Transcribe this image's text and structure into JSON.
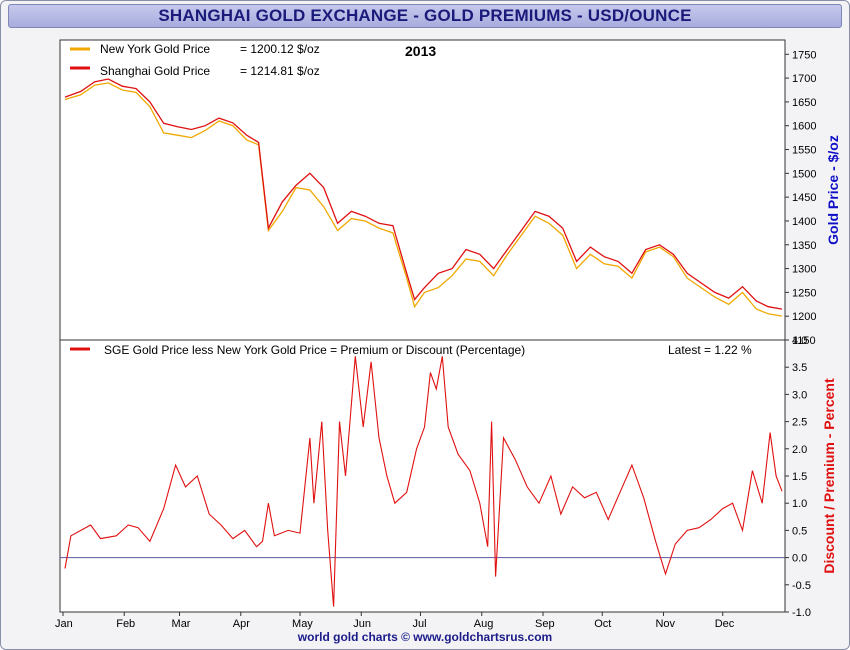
{
  "page": {
    "title": "SHANGHAI GOLD EXCHANGE - GOLD PREMIUMS - USD/OUNCE",
    "footer": "world gold charts © www.goldchartsrus.com"
  },
  "colors": {
    "new_york": "#f0a800",
    "shanghai": "#e01010",
    "premium": "#e01010",
    "right_label_top": "#1010c8",
    "right_label_bottom": "#e01010"
  },
  "chart_data": [
    {
      "type": "line",
      "year": "2013",
      "ylabel": "Gold Price - $/oz",
      "ylim": [
        1150,
        1780
      ],
      "yticks": [
        1150,
        1200,
        1250,
        1300,
        1350,
        1400,
        1450,
        1500,
        1550,
        1600,
        1650,
        1700,
        1750
      ],
      "x_months": [
        "Jan",
        "Feb",
        "Mar",
        "Apr",
        "May",
        "Jun",
        "Jul",
        "Aug",
        "Sep",
        "Oct",
        "Nov",
        "Dec"
      ],
      "legend_position": "top-left",
      "grid": false,
      "series": [
        {
          "name": "New York Gold Price",
          "legend_value": "= 1200.12 $/oz",
          "points": [
            [
              "2013-01-02",
              1655
            ],
            [
              "2013-01-10",
              1665
            ],
            [
              "2013-01-17",
              1685
            ],
            [
              "2013-01-24",
              1690
            ],
            [
              "2013-01-31",
              1675
            ],
            [
              "2013-02-07",
              1670
            ],
            [
              "2013-02-14",
              1640
            ],
            [
              "2013-02-21",
              1585
            ],
            [
              "2013-02-28",
              1580
            ],
            [
              "2013-03-07",
              1575
            ],
            [
              "2013-03-14",
              1590
            ],
            [
              "2013-03-21",
              1610
            ],
            [
              "2013-03-28",
              1600
            ],
            [
              "2013-04-04",
              1570
            ],
            [
              "2013-04-10",
              1560
            ],
            [
              "2013-04-15",
              1380
            ],
            [
              "2013-04-22",
              1420
            ],
            [
              "2013-04-29",
              1470
            ],
            [
              "2013-05-06",
              1465
            ],
            [
              "2013-05-13",
              1430
            ],
            [
              "2013-05-20",
              1380
            ],
            [
              "2013-05-27",
              1405
            ],
            [
              "2013-06-03",
              1400
            ],
            [
              "2013-06-10",
              1385
            ],
            [
              "2013-06-17",
              1375
            ],
            [
              "2013-06-24",
              1280
            ],
            [
              "2013-06-28",
              1220
            ],
            [
              "2013-07-03",
              1250
            ],
            [
              "2013-07-10",
              1260
            ],
            [
              "2013-07-17",
              1285
            ],
            [
              "2013-07-24",
              1320
            ],
            [
              "2013-07-31",
              1315
            ],
            [
              "2013-08-07",
              1285
            ],
            [
              "2013-08-14",
              1330
            ],
            [
              "2013-08-21",
              1370
            ],
            [
              "2013-08-28",
              1410
            ],
            [
              "2013-09-04",
              1395
            ],
            [
              "2013-09-11",
              1370
            ],
            [
              "2013-09-18",
              1300
            ],
            [
              "2013-09-25",
              1330
            ],
            [
              "2013-10-02",
              1310
            ],
            [
              "2013-10-09",
              1305
            ],
            [
              "2013-10-16",
              1280
            ],
            [
              "2013-10-23",
              1335
            ],
            [
              "2013-10-30",
              1345
            ],
            [
              "2013-11-06",
              1325
            ],
            [
              "2013-11-13",
              1280
            ],
            [
              "2013-11-20",
              1260
            ],
            [
              "2013-11-27",
              1240
            ],
            [
              "2013-12-04",
              1225
            ],
            [
              "2013-12-11",
              1250
            ],
            [
              "2013-12-18",
              1215
            ],
            [
              "2013-12-24",
              1205
            ],
            [
              "2013-12-31",
              1200.12
            ]
          ]
        },
        {
          "name": "Shanghai Gold Price",
          "legend_value": "= 1214.81 $/oz",
          "points": [
            [
              "2013-01-02",
              1660
            ],
            [
              "2013-01-10",
              1672
            ],
            [
              "2013-01-17",
              1692
            ],
            [
              "2013-01-24",
              1698
            ],
            [
              "2013-01-31",
              1683
            ],
            [
              "2013-02-07",
              1678
            ],
            [
              "2013-02-14",
              1650
            ],
            [
              "2013-02-21",
              1605
            ],
            [
              "2013-02-28",
              1598
            ],
            [
              "2013-03-07",
              1592
            ],
            [
              "2013-03-14",
              1600
            ],
            [
              "2013-03-21",
              1616
            ],
            [
              "2013-03-28",
              1606
            ],
            [
              "2013-04-04",
              1580
            ],
            [
              "2013-04-10",
              1565
            ],
            [
              "2013-04-15",
              1385
            ],
            [
              "2013-04-22",
              1440
            ],
            [
              "2013-04-29",
              1475
            ],
            [
              "2013-05-06",
              1500
            ],
            [
              "2013-05-13",
              1470
            ],
            [
              "2013-05-20",
              1395
            ],
            [
              "2013-05-27",
              1420
            ],
            [
              "2013-06-03",
              1410
            ],
            [
              "2013-06-10",
              1395
            ],
            [
              "2013-06-17",
              1390
            ],
            [
              "2013-06-24",
              1290
            ],
            [
              "2013-06-28",
              1235
            ],
            [
              "2013-07-03",
              1260
            ],
            [
              "2013-07-10",
              1290
            ],
            [
              "2013-07-17",
              1300
            ],
            [
              "2013-07-24",
              1340
            ],
            [
              "2013-07-31",
              1330
            ],
            [
              "2013-08-07",
              1300
            ],
            [
              "2013-08-14",
              1340
            ],
            [
              "2013-08-21",
              1380
            ],
            [
              "2013-08-28",
              1420
            ],
            [
              "2013-09-04",
              1410
            ],
            [
              "2013-09-11",
              1385
            ],
            [
              "2013-09-18",
              1315
            ],
            [
              "2013-09-25",
              1345
            ],
            [
              "2013-10-02",
              1325
            ],
            [
              "2013-10-09",
              1315
            ],
            [
              "2013-10-16",
              1290
            ],
            [
              "2013-10-23",
              1340
            ],
            [
              "2013-10-30",
              1350
            ],
            [
              "2013-11-06",
              1330
            ],
            [
              "2013-11-13",
              1290
            ],
            [
              "2013-11-20",
              1270
            ],
            [
              "2013-11-27",
              1250
            ],
            [
              "2013-12-04",
              1238
            ],
            [
              "2013-12-11",
              1262
            ],
            [
              "2013-12-18",
              1232
            ],
            [
              "2013-12-24",
              1220
            ],
            [
              "2013-12-31",
              1214.81
            ]
          ]
        }
      ]
    },
    {
      "type": "line",
      "ylabel": "Discount / Premium - Percent",
      "ylim": [
        -1.0,
        4.0
      ],
      "yticks": [
        -1.0,
        -0.5,
        0.0,
        0.5,
        1.0,
        1.5,
        2.0,
        2.5,
        3.0,
        3.5,
        4.0
      ],
      "x_months": [
        "Jan",
        "Feb",
        "Mar",
        "Apr",
        "May",
        "Jun",
        "Jul",
        "Aug",
        "Sep",
        "Oct",
        "Nov",
        "Dec"
      ],
      "zero_line": true,
      "latest_label": "Latest = 1.22 %",
      "series": [
        {
          "name": "SGE Gold Price less New York Gold Price = Premium or Discount (Percentage)",
          "points": [
            [
              "2013-01-02",
              -0.2
            ],
            [
              "2013-01-05",
              0.4
            ],
            [
              "2013-01-10",
              0.5
            ],
            [
              "2013-01-15",
              0.6
            ],
            [
              "2013-01-20",
              0.35
            ],
            [
              "2013-01-28",
              0.4
            ],
            [
              "2013-02-03",
              0.6
            ],
            [
              "2013-02-08",
              0.55
            ],
            [
              "2013-02-14",
              0.3
            ],
            [
              "2013-02-21",
              0.9
            ],
            [
              "2013-02-27",
              1.7
            ],
            [
              "2013-03-04",
              1.3
            ],
            [
              "2013-03-10",
              1.5
            ],
            [
              "2013-03-16",
              0.8
            ],
            [
              "2013-03-22",
              0.6
            ],
            [
              "2013-03-28",
              0.35
            ],
            [
              "2013-04-03",
              0.5
            ],
            [
              "2013-04-09",
              0.2
            ],
            [
              "2013-04-12",
              0.3
            ],
            [
              "2013-04-15",
              1.0
            ],
            [
              "2013-04-18",
              0.4
            ],
            [
              "2013-04-25",
              0.5
            ],
            [
              "2013-05-01",
              0.45
            ],
            [
              "2013-05-06",
              2.2
            ],
            [
              "2013-05-08",
              1.0
            ],
            [
              "2013-05-12",
              2.5
            ],
            [
              "2013-05-15",
              0.5
            ],
            [
              "2013-05-18",
              -0.9
            ],
            [
              "2013-05-21",
              2.5
            ],
            [
              "2013-05-24",
              1.5
            ],
            [
              "2013-05-29",
              3.7
            ],
            [
              "2013-06-02",
              2.4
            ],
            [
              "2013-06-06",
              3.6
            ],
            [
              "2013-06-10",
              2.2
            ],
            [
              "2013-06-14",
              1.5
            ],
            [
              "2013-06-18",
              1.0
            ],
            [
              "2013-06-24",
              1.2
            ],
            [
              "2013-06-29",
              2.0
            ],
            [
              "2013-07-03",
              2.4
            ],
            [
              "2013-07-06",
              3.4
            ],
            [
              "2013-07-09",
              3.1
            ],
            [
              "2013-07-12",
              3.7
            ],
            [
              "2013-07-15",
              2.4
            ],
            [
              "2013-07-20",
              1.9
            ],
            [
              "2013-07-26",
              1.6
            ],
            [
              "2013-07-31",
              1.0
            ],
            [
              "2013-08-04",
              0.2
            ],
            [
              "2013-08-06",
              2.5
            ],
            [
              "2013-08-08",
              -0.35
            ],
            [
              "2013-08-12",
              2.2
            ],
            [
              "2013-08-18",
              1.8
            ],
            [
              "2013-08-24",
              1.3
            ],
            [
              "2013-08-30",
              1.0
            ],
            [
              "2013-09-05",
              1.5
            ],
            [
              "2013-09-10",
              0.8
            ],
            [
              "2013-09-16",
              1.3
            ],
            [
              "2013-09-22",
              1.1
            ],
            [
              "2013-09-28",
              1.2
            ],
            [
              "2013-10-04",
              0.7
            ],
            [
              "2013-10-10",
              1.2
            ],
            [
              "2013-10-16",
              1.7
            ],
            [
              "2013-10-22",
              1.1
            ],
            [
              "2013-10-28",
              0.3
            ],
            [
              "2013-11-02",
              -0.3
            ],
            [
              "2013-11-07",
              0.25
            ],
            [
              "2013-11-13",
              0.5
            ],
            [
              "2013-11-19",
              0.55
            ],
            [
              "2013-11-25",
              0.7
            ],
            [
              "2013-12-01",
              0.9
            ],
            [
              "2013-12-06",
              1.0
            ],
            [
              "2013-12-11",
              0.5
            ],
            [
              "2013-12-16",
              1.6
            ],
            [
              "2013-12-21",
              1.0
            ],
            [
              "2013-12-25",
              2.3
            ],
            [
              "2013-12-28",
              1.5
            ],
            [
              "2013-12-31",
              1.22
            ]
          ]
        }
      ]
    }
  ]
}
